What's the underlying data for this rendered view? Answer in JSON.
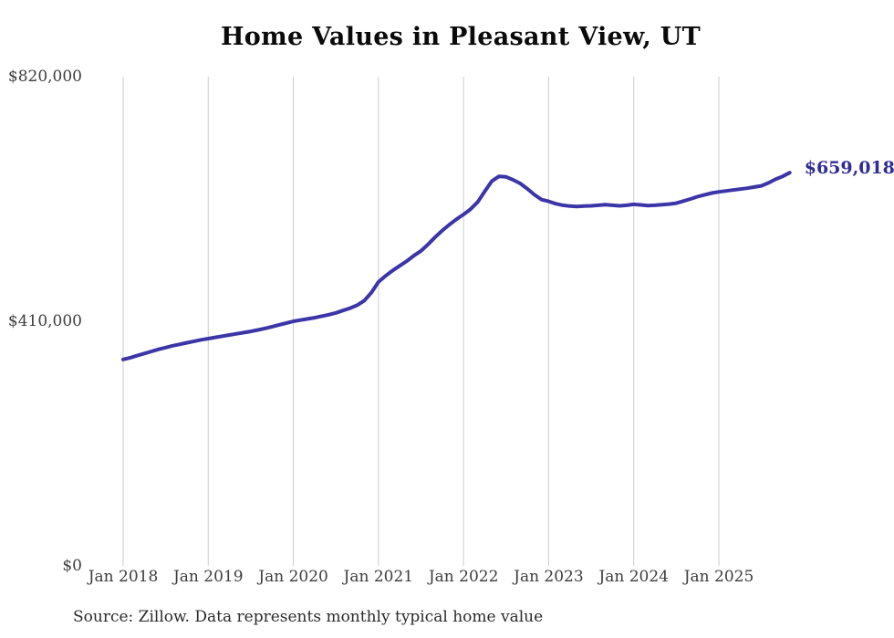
{
  "source_note": "Source: Zillow. Data represents monthly typical home value",
  "colors": {
    "background": "#ffffff",
    "line": "#3b35a7",
    "end_label": "#312b98",
    "grid": "#cccccc",
    "tick_text": "#3d3d3d",
    "title_text": "#0a0a0a",
    "source_text": "#2b2b2b"
  },
  "chart_data": {
    "type": "line",
    "title": "Home Values in Pleasant View, UT",
    "xlabel": "",
    "ylabel": "",
    "ylim": [
      0,
      820000
    ],
    "grid": "vertical-only",
    "legend": "none",
    "x_tick_labels": [
      "Jan 2018",
      "Jan 2019",
      "Jan 2020",
      "Jan 2021",
      "Jan 2022",
      "Jan 2023",
      "Jan 2024",
      "Jan 2025"
    ],
    "y_ticks": [
      {
        "label": "$0",
        "value": 0
      },
      {
        "label": "$410,000",
        "value": 410000
      },
      {
        "label": "$820,000",
        "value": 820000
      }
    ],
    "final_value": 659018,
    "final_value_label": "$659,018",
    "series": [
      {
        "name": "Monthly typical home value",
        "start_month": "2018-01",
        "end_month": "2025-11",
        "frequency": "monthly",
        "values": [
          346000,
          349000,
          352500,
          356000,
          359500,
          363000,
          366000,
          369000,
          371500,
          374000,
          376500,
          379000,
          381000,
          383000,
          385000,
          387000,
          389000,
          391000,
          393000,
          395500,
          398000,
          401000,
          404000,
          407000,
          410000,
          412000,
          414000,
          416000,
          418500,
          421000,
          424000,
          428000,
          432000,
          437000,
          444500,
          458000,
          476000,
          486000,
          495000,
          503000,
          511000,
          520000,
          528000,
          539000,
          551000,
          562000,
          572000,
          581000,
          589000,
          598000,
          610000,
          628000,
          645000,
          653000,
          652000,
          647000,
          641000,
          632000,
          622000,
          614000,
          611000,
          607000,
          604500,
          603000,
          602500,
          603000,
          603500,
          604500,
          605500,
          604500,
          603500,
          604500,
          606000,
          605000,
          604000,
          604500,
          605500,
          606500,
          608000,
          611500,
          615000,
          619000,
          622000,
          625000,
          627000,
          628500,
          630000,
          631500,
          633000,
          635000,
          637000,
          642000,
          648000,
          653000,
          659018
        ]
      }
    ]
  }
}
